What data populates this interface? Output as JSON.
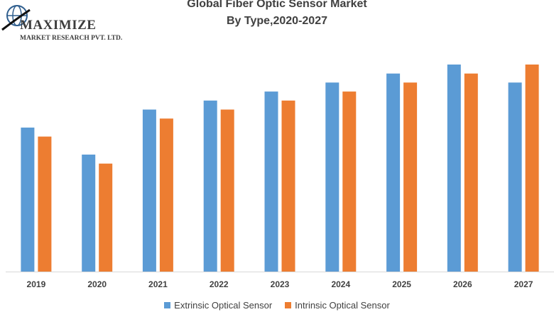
{
  "brand": {
    "name": "MAXIMIZE",
    "subtitle": "MARKET RESEARCH PVT. LTD."
  },
  "colors": {
    "extrinsic": "#5b9bd5",
    "intrinsic": "#ed7d31"
  },
  "chart_data": {
    "type": "bar",
    "title": "Global Fiber Optic Sensor Market",
    "subtitle": "By Type,2020-2027",
    "categories": [
      "2019",
      "2020",
      "2021",
      "2022",
      "2023",
      "2024",
      "2025",
      "2026",
      "2027"
    ],
    "series": [
      {
        "name": "Extrinsic Optical Sensor",
        "values": [
          16,
          13,
          18,
          19,
          20,
          21,
          22,
          23,
          21
        ]
      },
      {
        "name": "Intrinsic Optical Sensor",
        "values": [
          15,
          12,
          17,
          18,
          19,
          20,
          21,
          22,
          23
        ]
      }
    ],
    "xlabel": "",
    "ylabel": "",
    "ylim": [
      0,
      23
    ],
    "grid": false,
    "legend": "bottom"
  }
}
